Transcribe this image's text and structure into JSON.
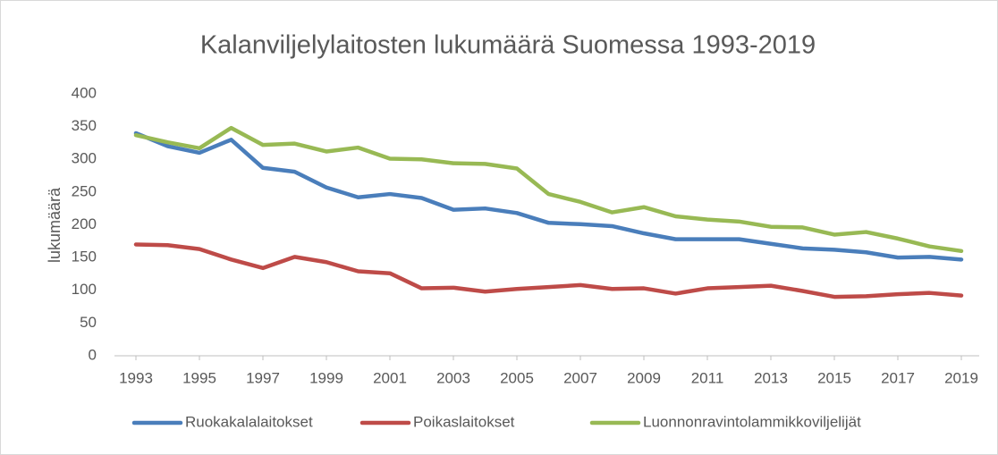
{
  "chart_data": {
    "type": "line",
    "title": "Kalanviljelylaitosten lukumäärä Suomessa 1993-2019",
    "ylabel": "lukumäärä",
    "x": [
      1993,
      1994,
      1995,
      1996,
      1997,
      1998,
      1999,
      2000,
      2001,
      2002,
      2003,
      2004,
      2005,
      2006,
      2007,
      2008,
      2009,
      2010,
      2011,
      2012,
      2013,
      2014,
      2015,
      2016,
      2017,
      2018,
      2019
    ],
    "xlim": [
      1993,
      2019
    ],
    "xticks": [
      1993,
      1995,
      1997,
      1999,
      2001,
      2003,
      2005,
      2007,
      2009,
      2011,
      2013,
      2015,
      2017,
      2019
    ],
    "ylim": [
      0,
      400
    ],
    "yticks": [
      0,
      50,
      100,
      150,
      200,
      250,
      300,
      350,
      400
    ],
    "grid": false,
    "legend": "bottom",
    "series": [
      {
        "name": "Ruokakalalaitokset",
        "color": "#4a7ebb",
        "values": [
          340,
          320,
          310,
          330,
          287,
          281,
          257,
          242,
          247,
          241,
          223,
          225,
          218,
          203,
          201,
          198,
          187,
          178,
          178,
          178,
          171,
          164,
          162,
          158,
          150,
          151,
          147
        ]
      },
      {
        "name": "Poikaslaitokset",
        "color": "#be4b48",
        "values": [
          170,
          169,
          163,
          147,
          134,
          151,
          143,
          129,
          126,
          103,
          104,
          98,
          102,
          105,
          108,
          102,
          103,
          95,
          103,
          105,
          107,
          99,
          90,
          91,
          94,
          96,
          92
        ]
      },
      {
        "name": "Luonnonravintolammikkoviljelijät",
        "color": "#98b954",
        "values": [
          337,
          326,
          317,
          348,
          322,
          324,
          312,
          318,
          301,
          300,
          294,
          293,
          286,
          247,
          235,
          219,
          227,
          213,
          208,
          205,
          197,
          196,
          185,
          189,
          179,
          167,
          160
        ]
      }
    ]
  }
}
